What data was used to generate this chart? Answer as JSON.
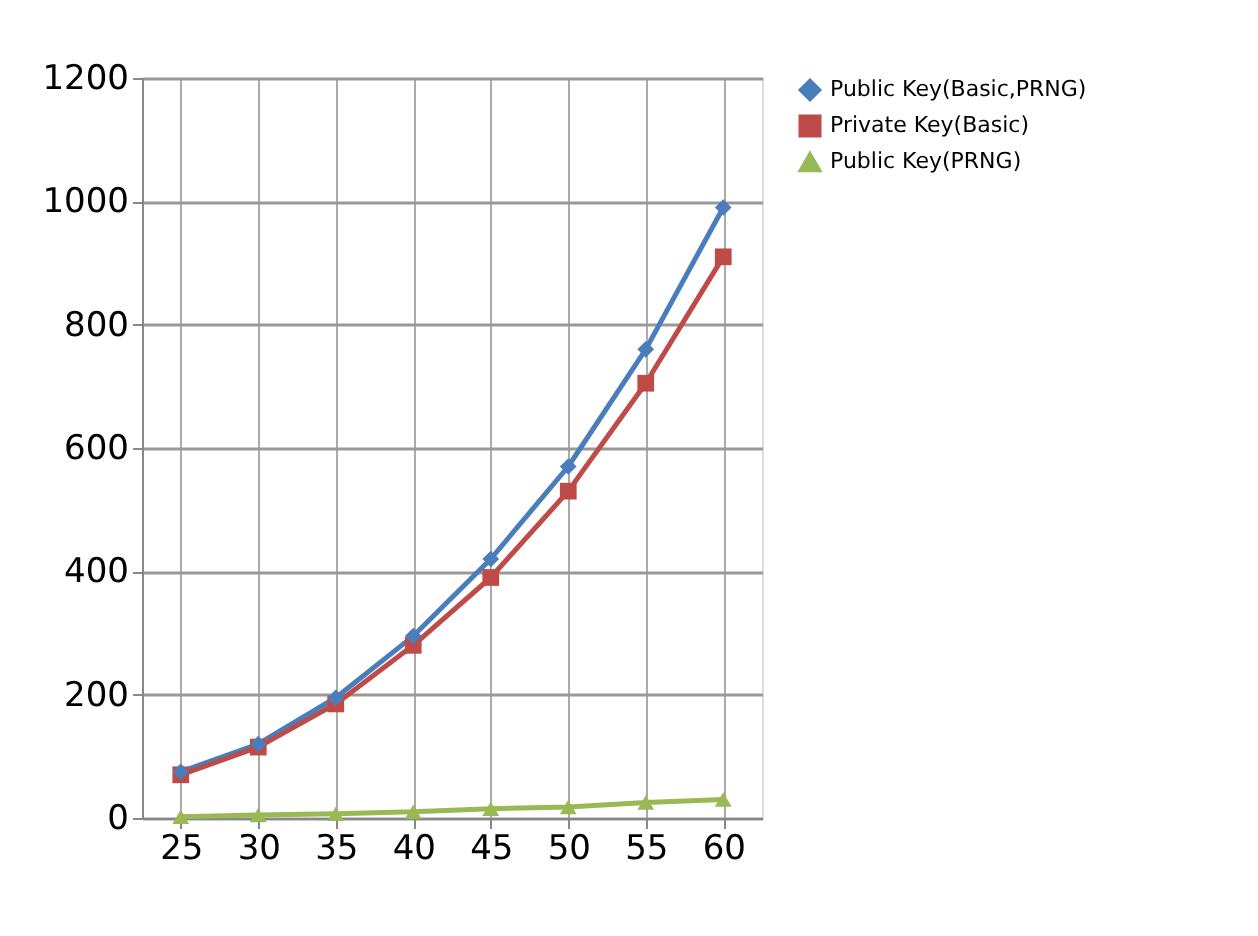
{
  "chart_data": {
    "type": "line",
    "categories": [
      "25",
      "30",
      "35",
      "40",
      "45",
      "50",
      "55",
      "60"
    ],
    "series": [
      {
        "name": "Public Key(Basic,PRNG)",
        "color": "#4a7ebb",
        "marker": "diamond",
        "values": [
          75,
          120,
          195,
          295,
          420,
          570,
          760,
          990
        ]
      },
      {
        "name": "Private Key(Basic)",
        "color": "#be4b48",
        "marker": "square",
        "values": [
          70,
          115,
          185,
          280,
          390,
          530,
          705,
          910
        ]
      },
      {
        "name": "Public Key(PRNG)",
        "color": "#98b954",
        "marker": "triangle",
        "values": [
          2,
          5,
          7,
          10,
          15,
          18,
          25,
          30
        ]
      }
    ],
    "ylim": [
      0,
      1200
    ],
    "yticks": [
      0,
      200,
      400,
      600,
      800,
      1000,
      1200
    ],
    "grid": true,
    "legend": "right",
    "line_style": "solid"
  }
}
